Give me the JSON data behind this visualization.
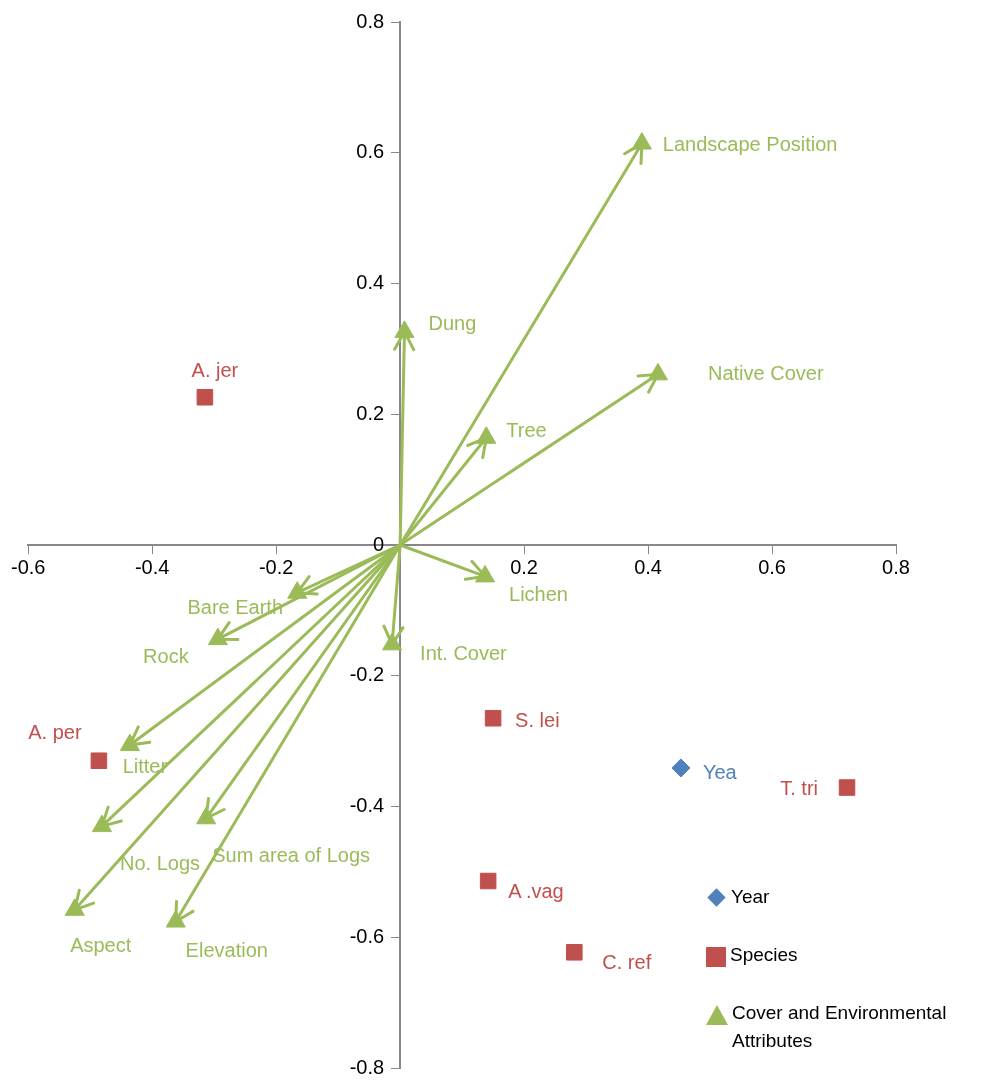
{
  "chart_data": {
    "type": "scatter",
    "xlim": [
      -0.6,
      0.8
    ],
    "ylim": [
      -0.8,
      0.8
    ],
    "xticks": [
      -0.6,
      -0.4,
      -0.2,
      {
        "value": 0,
        "label": null
      },
      0.2,
      0.4,
      0.6,
      0.8
    ],
    "yticks": [
      -0.8,
      -0.6,
      -0.4,
      -0.2,
      0,
      0.2,
      0.4,
      0.6,
      0.8
    ],
    "grid": false,
    "legend": "bottom right",
    "series": [
      {
        "name": "Year",
        "color": "#4f81bd",
        "marker": "diamond",
        "x": [
          0.453
        ],
        "values": [
          -0.341
        ]
      },
      {
        "name": "Species",
        "color": "#c0504d",
        "marker": "square",
        "x": [
          -0.315,
          -0.486,
          0.15,
          0.721,
          0.142,
          0.281
        ],
        "values": [
          0.226,
          -0.33,
          -0.265,
          -0.371,
          -0.514,
          -0.623
        ]
      },
      {
        "name": "Cover and Environmental Attributes",
        "color": "#9bbb59",
        "marker": "triangle",
        "x": [
          0.39,
          0.007,
          0.416,
          0.139,
          0.137,
          -0.013,
          -0.166,
          -0.294,
          -0.436,
          -0.481,
          -0.313,
          -0.525,
          -0.362
        ],
        "values": [
          0.614,
          0.326,
          0.261,
          0.164,
          -0.048,
          -0.152,
          -0.073,
          -0.144,
          -0.306,
          -0.43,
          -0.418,
          -0.558,
          -0.576
        ]
      }
    ],
    "annotations": [
      {
        "text": "Yea",
        "x": 0.453,
        "y": -0.341
      },
      {
        "text": "A. jer",
        "x": -0.315,
        "y": 0.226
      },
      {
        "text": "A. per",
        "x": -0.486,
        "y": -0.33
      },
      {
        "text": "S. lei",
        "x": 0.15,
        "y": -0.265
      },
      {
        "text": "T. tri",
        "x": 0.721,
        "y": -0.371
      },
      {
        "text": "A .vag",
        "x": 0.142,
        "y": -0.514
      },
      {
        "text": "C. ref",
        "x": 0.281,
        "y": -0.623
      },
      {
        "text": "Landscape Position",
        "x": 0.39,
        "y": 0.614
      },
      {
        "text": "Dung",
        "x": 0.007,
        "y": 0.326
      },
      {
        "text": "Native Cover",
        "x": 0.416,
        "y": 0.261
      },
      {
        "text": "Tree",
        "x": 0.139,
        "y": 0.164
      },
      {
        "text": "Lichen",
        "x": 0.137,
        "y": -0.048
      },
      {
        "text": "Int. Cover",
        "x": -0.013,
        "y": -0.152
      },
      {
        "text": "Bare Earth",
        "x": -0.166,
        "y": -0.073
      },
      {
        "text": "Rock",
        "x": -0.294,
        "y": -0.144
      },
      {
        "text": "Litter",
        "x": -0.436,
        "y": -0.306
      },
      {
        "text": "No. Logs",
        "x": -0.481,
        "y": -0.43
      },
      {
        "text": "Sum area of Logs",
        "x": -0.313,
        "y": -0.418
      },
      {
        "text": "Aspect",
        "x": -0.525,
        "y": -0.558
      },
      {
        "text": "Elevation",
        "x": -0.362,
        "y": -0.576
      }
    ]
  }
}
